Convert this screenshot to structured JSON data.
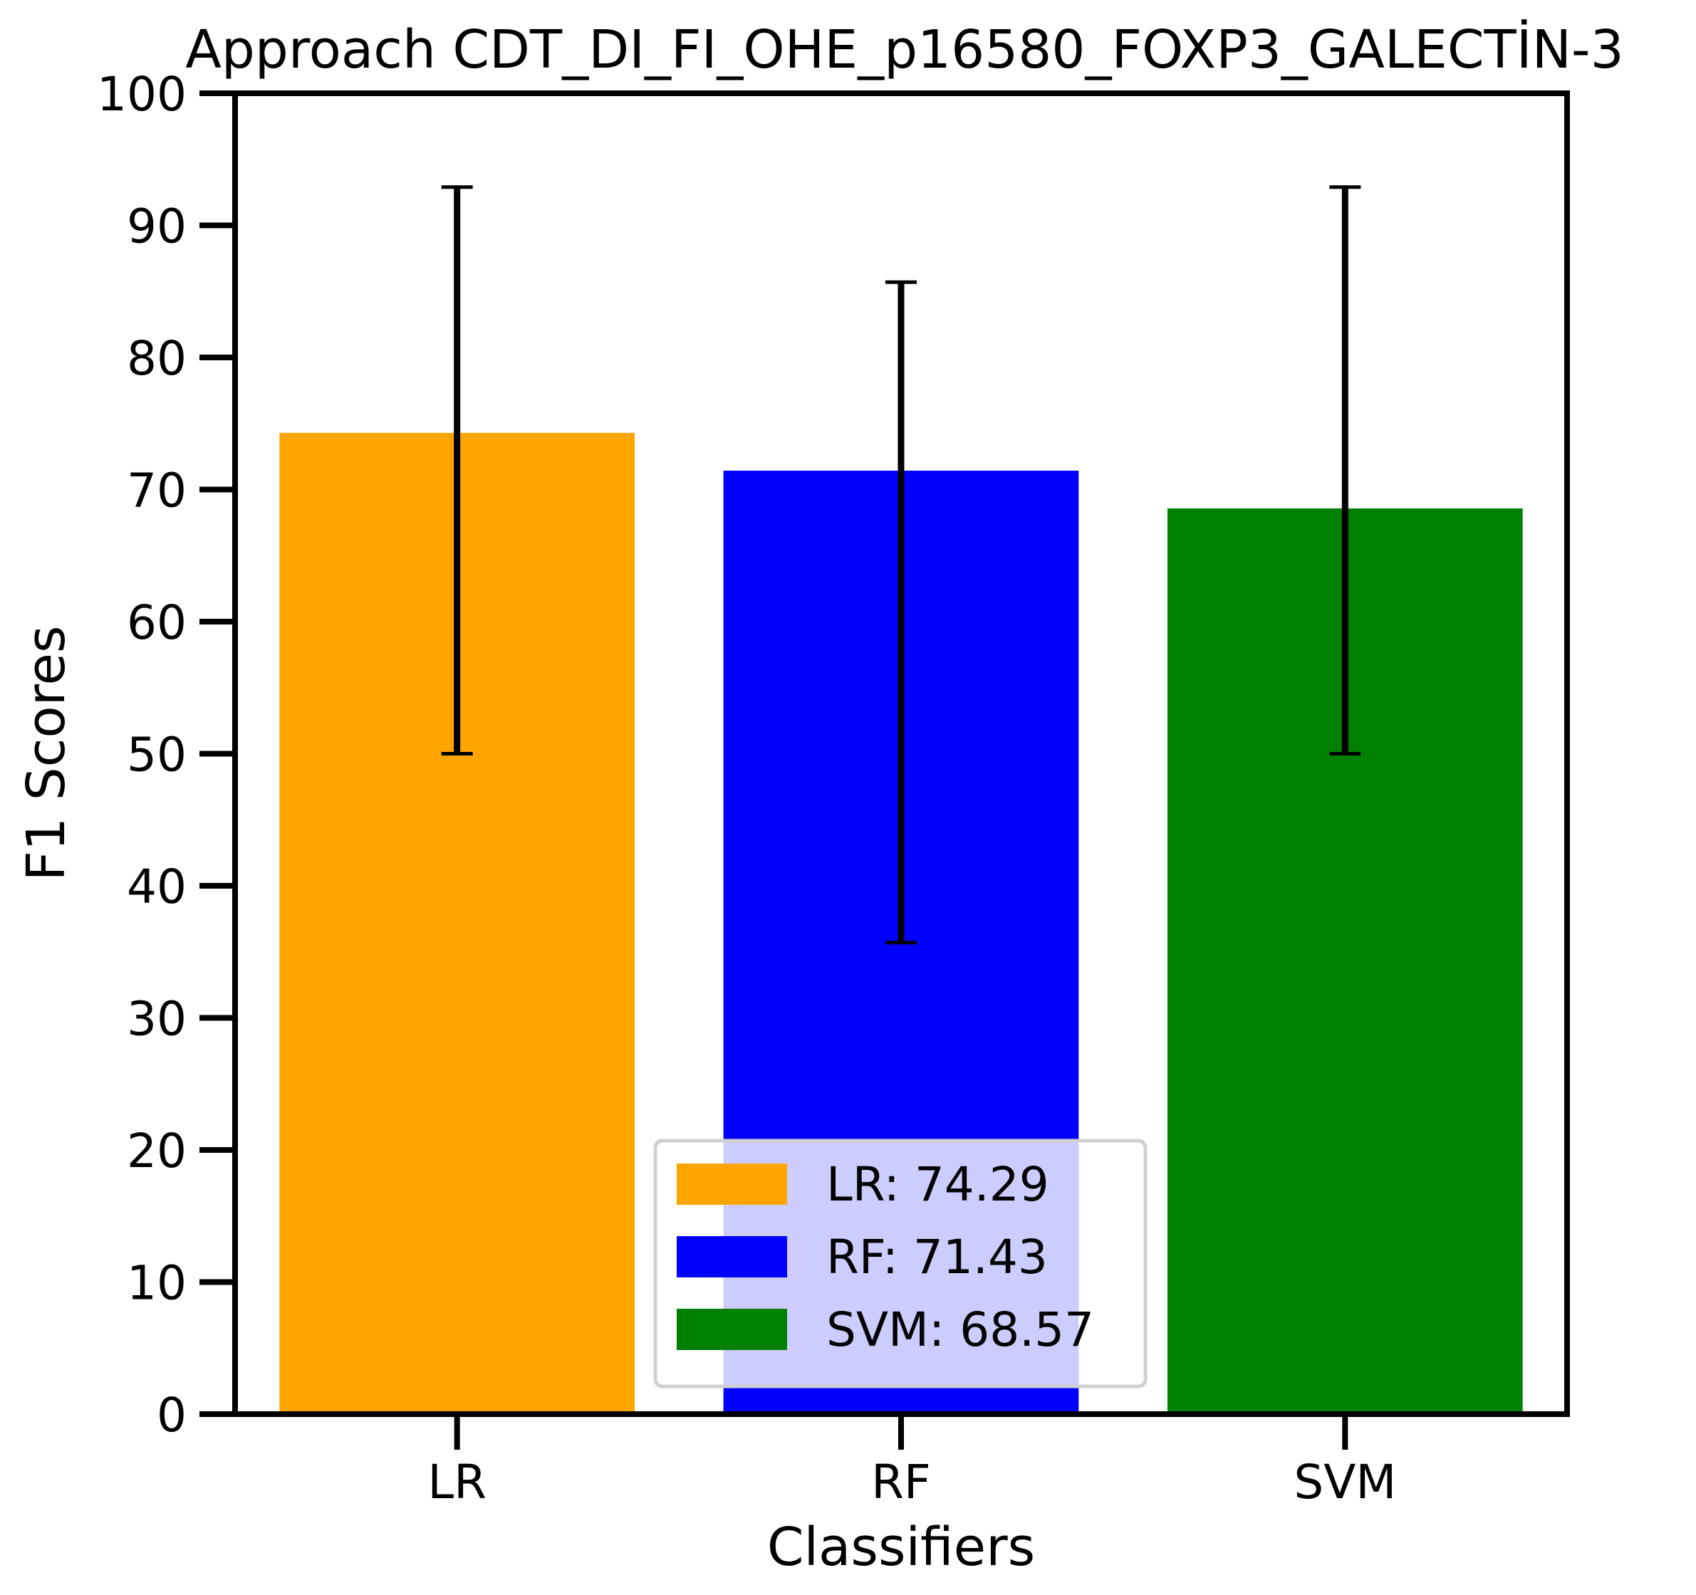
{
  "chart_data": {
    "type": "bar",
    "title": "Approach CDT_DI_FI_OHE_p16580_FOXP3_GALECTİN-3",
    "xlabel": "Classifiers",
    "ylabel": "F1 Scores",
    "ylim": [
      0,
      100
    ],
    "yticks": [
      0,
      10,
      20,
      30,
      40,
      50,
      60,
      70,
      80,
      90,
      100
    ],
    "categories": [
      "LR",
      "RF",
      "SVM"
    ],
    "values": [
      74.29,
      71.43,
      68.57
    ],
    "error_low": [
      50.0,
      35.7,
      50.0
    ],
    "error_high": [
      92.9,
      85.7,
      92.9
    ],
    "colors": [
      "#ffa500",
      "#0000ff",
      "#008000"
    ],
    "grid": false,
    "legend": {
      "placement": "lower-center",
      "entries": [
        {
          "label": "LR: 74.29",
          "color": "#ffa500"
        },
        {
          "label": "RF: 71.43",
          "color": "#0000ff"
        },
        {
          "label": "SVM: 68.57",
          "color": "#008000"
        }
      ]
    }
  }
}
